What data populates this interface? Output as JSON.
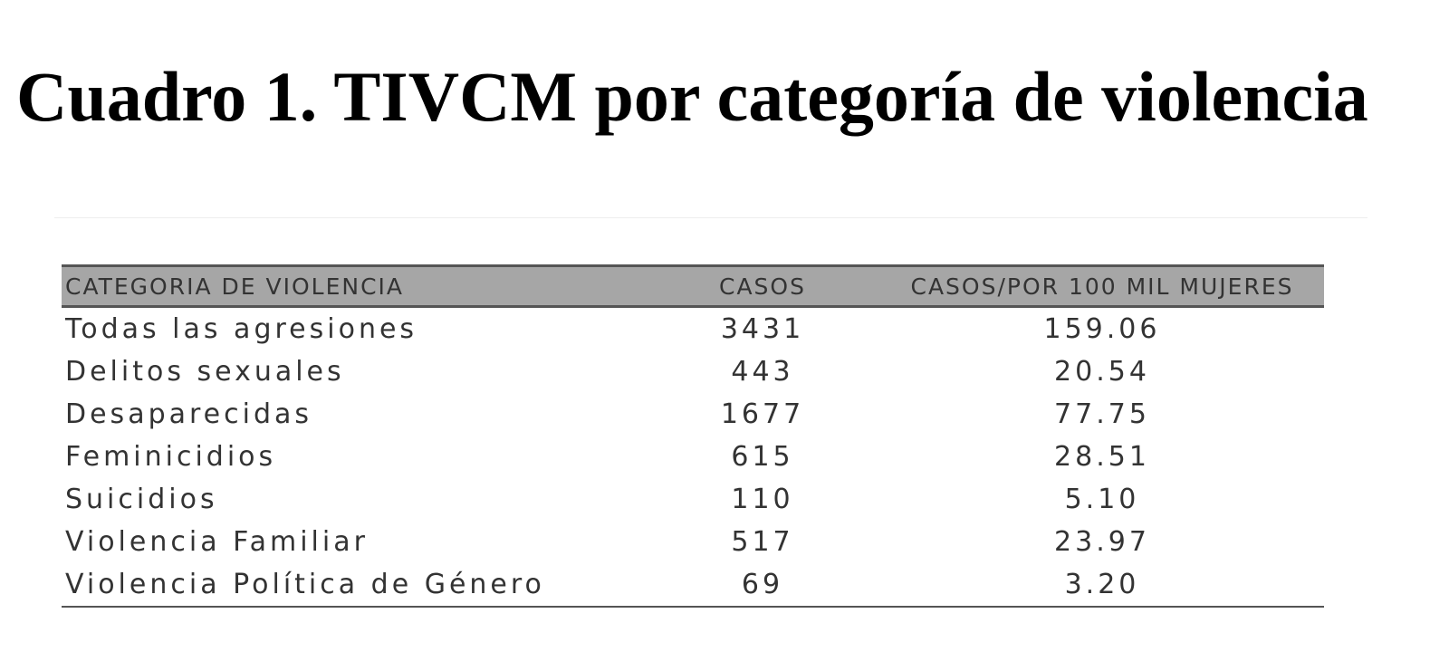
{
  "title": "Cuadro 1. TIVCM por categoría de violencia",
  "table": {
    "header": [
      "CATEGORIA DE VIOLENCIA",
      "CASOS",
      "CASOS/POR 100 MIL MUJERES"
    ],
    "rows": [
      [
        "Todas las agresiones",
        "3431",
        "159.06"
      ],
      [
        "Delitos sexuales",
        "443",
        "20.54"
      ],
      [
        "Desaparecidas",
        "1677",
        "77.75"
      ],
      [
        "Feminicidios",
        "615",
        "28.51"
      ],
      [
        "Suicidios",
        "110",
        "5.10"
      ],
      [
        "Violencia Familiar",
        "517",
        "23.97"
      ],
      [
        "Violencia Política de Género",
        "69",
        "3.20"
      ]
    ]
  }
}
